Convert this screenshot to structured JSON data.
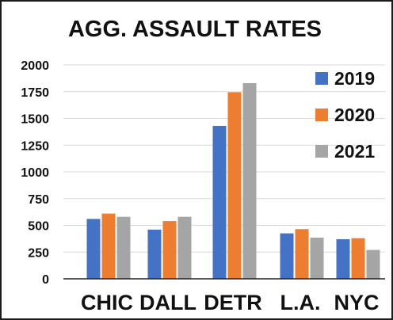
{
  "chart_data": {
    "type": "bar",
    "title": "AGG. ASSAULT RATES",
    "categories": [
      "CHIC",
      "DALL",
      "DETR",
      "L.A.",
      "NYC"
    ],
    "series": [
      {
        "name": "2019",
        "color": "#4472c4",
        "values": [
          560,
          460,
          1430,
          425,
          370
        ]
      },
      {
        "name": "2020",
        "color": "#ed7d31",
        "values": [
          610,
          540,
          1745,
          465,
          380
        ]
      },
      {
        "name": "2021",
        "color": "#a5a5a5",
        "values": [
          580,
          580,
          1830,
          385,
          270
        ]
      }
    ],
    "y_ticks": [
      "2000",
      "1750",
      "1500",
      "1250",
      "1000",
      "750",
      "500",
      "250",
      "0"
    ],
    "ylim": [
      0,
      2000
    ],
    "grid": true,
    "legend_position": "top-right"
  }
}
